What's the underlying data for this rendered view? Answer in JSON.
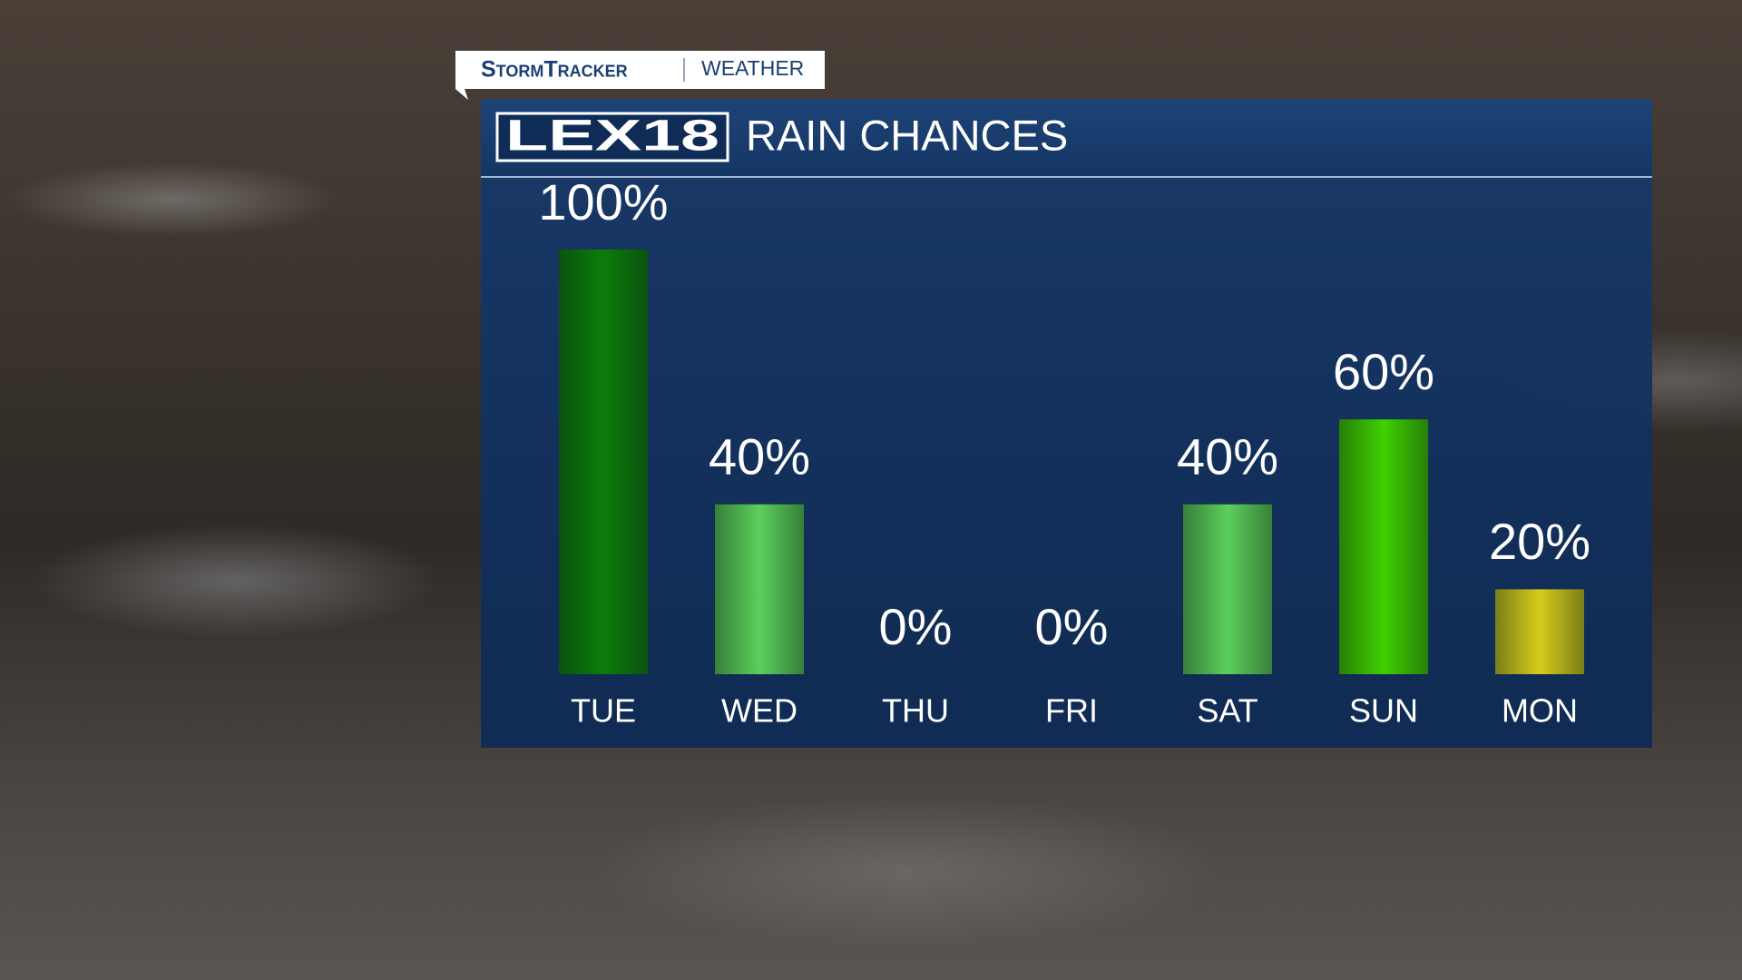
{
  "header": {
    "brand": "StormTracker",
    "section": "WEATHER",
    "logo": "LEX18"
  },
  "chart_data": {
    "type": "bar",
    "title": "RAIN CHANCES",
    "categories": [
      "TUE",
      "WED",
      "THU",
      "FRI",
      "SAT",
      "SUN",
      "MON"
    ],
    "values": [
      100,
      40,
      0,
      0,
      40,
      60,
      20
    ],
    "value_labels": [
      "100%",
      "40%",
      "0%",
      "0%",
      "40%",
      "60%",
      "20%"
    ],
    "colors": [
      "#0b7d0b",
      "#5ccf5c",
      "#5ccf5c",
      "#5ccf5c",
      "#5ccf5c",
      "#3fd000",
      "#d6cc1c"
    ],
    "ylim": [
      0,
      100
    ]
  }
}
